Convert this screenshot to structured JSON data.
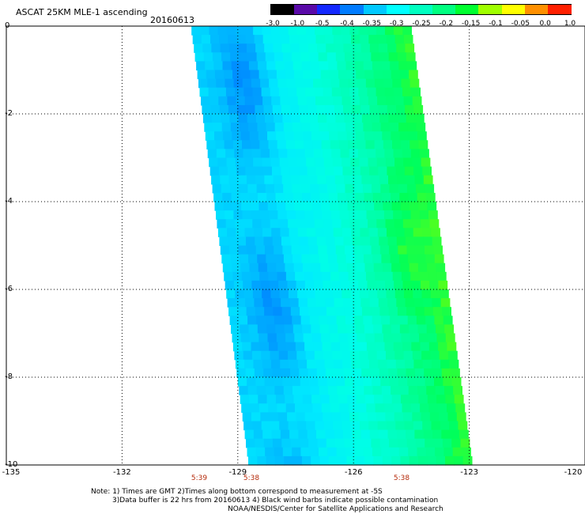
{
  "header": {
    "title": "ASCAT 25KM MLE-1 ascending",
    "date": "20160613"
  },
  "colorbar": {
    "labels": [
      "-3.0",
      "-1.0",
      "-0.5",
      "-0.4",
      "-0.35",
      "-0.3",
      "-0.25",
      "-0.2",
      "-0.15",
      "-0.1",
      "-0.05",
      "0.0",
      "1.0"
    ],
    "colors": [
      "#000000",
      "#5a0aa8",
      "#1428ff",
      "#007bff",
      "#00c8ff",
      "#00ffff",
      "#00ffc0",
      "#00ff80",
      "#00ff30",
      "#a0ff00",
      "#ffff00",
      "#ff9000",
      "#ff2000"
    ]
  },
  "axes": {
    "x_ticks": [
      "-135",
      "-132",
      "-129",
      "-126",
      "-123",
      "-120"
    ],
    "y_ticks": [
      "0",
      "-2",
      "-4",
      "-6",
      "-8",
      "-10"
    ]
  },
  "time_labels": [
    "5:39",
    "5:38",
    "5:38"
  ],
  "notes": {
    "line1": "Note: 1) Times are GMT 2)Times along bottom correspond to measurement at -5S",
    "line2": "3)Data buffer is 22 hrs from 20160613 4) Black wind barbs indicate possible contamination",
    "line3": "NOAA/NESDIS/Center for Satellite Applications and Research"
  },
  "chart_data": {
    "type": "heatmap",
    "title": "ASCAT 25KM MLE-1 ascending",
    "date": "20160613",
    "xlim": [
      -135,
      -120
    ],
    "ylim": [
      -10,
      0
    ],
    "swath_lon_range_at_top": [
      -130.2,
      -124.5
    ],
    "swath_lon_range_at_bottom": [
      -128.7,
      -122.9
    ],
    "value_range": [
      -0.35,
      -0.05
    ],
    "grid": true
  }
}
